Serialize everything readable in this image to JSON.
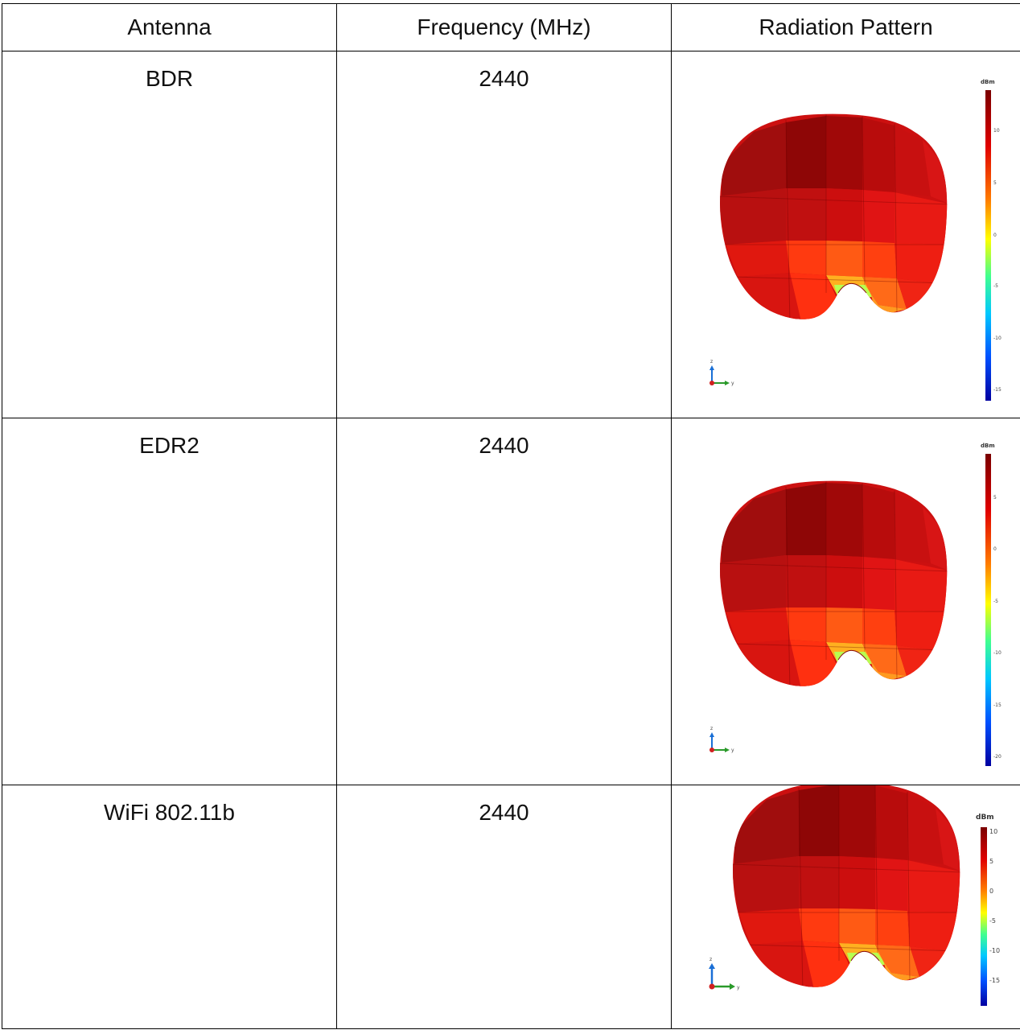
{
  "table": {
    "headers": [
      "Antenna",
      "Frequency (MHz)",
      "Radiation Pattern"
    ],
    "rows": [
      {
        "antenna": "BDR",
        "frequency": "2440",
        "pattern": {
          "unit": "dBm",
          "ticks": [
            "10",
            "5",
            "0",
            "-5",
            "-10",
            "-15"
          ],
          "axis_labels": {
            "z": "z",
            "y": "y"
          }
        }
      },
      {
        "antenna": "EDR2",
        "frequency": "2440",
        "pattern": {
          "unit": "dBm",
          "ticks": [
            "5",
            "0",
            "-5",
            "-10",
            "-15",
            "-20"
          ],
          "axis_labels": {
            "z": "z",
            "y": "y"
          }
        }
      },
      {
        "antenna": "WiFi 802.11b",
        "frequency": "2440",
        "pattern": {
          "unit": "dBm",
          "ticks": [
            "10",
            "5",
            "0",
            "-5",
            "-10",
            "-15"
          ],
          "axis_labels": {
            "z": "z",
            "y": "y"
          }
        }
      }
    ]
  },
  "colors": {
    "colorbar_top": "#7a0000",
    "colorbar_mid": "#ffff00",
    "colorbar_bottom": "#0000a0",
    "pattern_dark": "#9a0a0a",
    "pattern_main": "#cc1010",
    "pattern_orange": "#ff4a10",
    "pattern_green": "#a8ff60",
    "axis_z": "#1a6fd6",
    "axis_y": "#2a9a2a",
    "axis_x": "#d02020"
  }
}
